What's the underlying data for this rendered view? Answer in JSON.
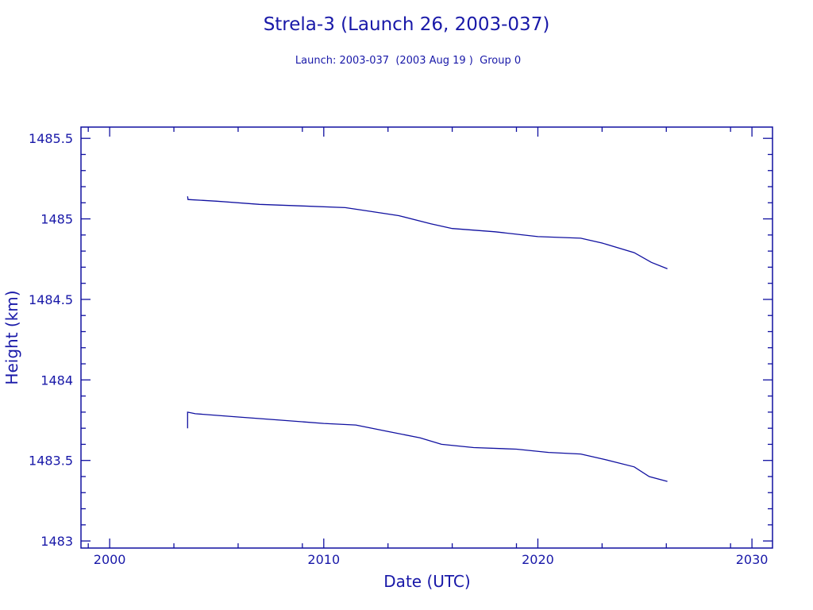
{
  "chart_data": {
    "type": "line",
    "title": "Strela-3 (Launch 26, 2003-037)",
    "subtitle": "Launch: 2003-037  (2003 Aug 19 )  Group 0",
    "xlabel": "Date (UTC)",
    "ylabel": "Height (km)",
    "xlim": [
      1998.66,
      2030.96
    ],
    "ylim": [
      1482.956,
      1485.57
    ],
    "x_ticks": [
      2000,
      2010,
      2020,
      2030
    ],
    "x_tick_labels": [
      "2000",
      "2010",
      "2020",
      "2030"
    ],
    "x_minor_ticks": [
      1999,
      2003,
      2006,
      2009,
      2013,
      2016,
      2019,
      2023,
      2026,
      2029
    ],
    "y_ticks": [
      1483,
      1483.5,
      1484,
      1484.5,
      1485,
      1485.5
    ],
    "y_tick_labels": [
      "1483",
      "1483.5",
      "1484",
      "1484.5",
      "1485",
      "1485.5"
    ],
    "y_minor_step": 0.1,
    "grid": false,
    "color": "#1010a0",
    "series": [
      {
        "x": [
          2003.64,
          2003.66,
          2005,
          2007,
          2009,
          2011,
          2012,
          2013.5,
          2015,
          2016,
          2018,
          2020,
          2022,
          2023,
          2024.5,
          2025.3,
          2026.05
        ],
        "y": [
          1485.14,
          1485.12,
          1485.11,
          1485.09,
          1485.08,
          1485.07,
          1485.05,
          1485.02,
          1484.97,
          1484.94,
          1484.92,
          1484.89,
          1484.88,
          1484.85,
          1484.79,
          1484.73,
          1484.69
        ]
      },
      {
        "x": [
          2003.64,
          2003.64,
          2004,
          2006,
          2008,
          2010,
          2011.5,
          2013,
          2014.5,
          2015.5,
          2017,
          2019,
          2020.5,
          2022,
          2023,
          2024.5,
          2025.2,
          2026.05
        ],
        "y": [
          1483.7,
          1483.8,
          1483.79,
          1483.77,
          1483.75,
          1483.73,
          1483.72,
          1483.68,
          1483.64,
          1483.6,
          1483.58,
          1483.57,
          1483.55,
          1483.54,
          1483.51,
          1483.46,
          1483.4,
          1483.37
        ]
      }
    ]
  }
}
